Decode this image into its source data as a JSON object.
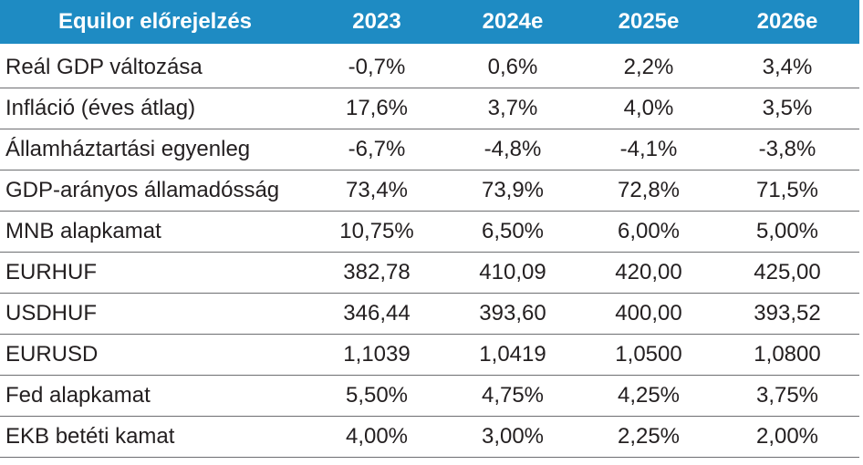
{
  "chart_data": {
    "type": "table",
    "columns": [
      "Equilor előrejelzés",
      "2023",
      "2024e",
      "2025e",
      "2026e"
    ],
    "rows": [
      [
        "Reál GDP változása",
        "-0,7%",
        "0,6%",
        "2,2%",
        "3,4%"
      ],
      [
        "Infláció (éves átlag)",
        "17,6%",
        "3,7%",
        "4,0%",
        "3,5%"
      ],
      [
        "Államháztartási egyenleg",
        "-6,7%",
        "-4,8%",
        "-4,1%",
        "-3,8%"
      ],
      [
        "GDP-arányos államadósság",
        "73,4%",
        "73,9%",
        "72,8%",
        "71,5%"
      ],
      [
        "MNB alapkamat",
        "10,75%",
        "6,50%",
        "6,00%",
        "5,00%"
      ],
      [
        "EURHUF",
        "382,78",
        "410,09",
        "420,00",
        "425,00"
      ],
      [
        "USDHUF",
        "346,44",
        "393,60",
        "400,00",
        "393,52"
      ],
      [
        "EURUSD",
        "1,1039",
        "1,0419",
        "1,0500",
        "1,0800"
      ],
      [
        "Fed alapkamat",
        "5,50%",
        "4,75%",
        "4,25%",
        "3,75%"
      ],
      [
        "EKB betéti kamat",
        "4,00%",
        "3,00%",
        "2,25%",
        "2,00%"
      ]
    ],
    "colors": {
      "header_bg": "#1e8bc3",
      "header_text": "#ffffff",
      "body_text": "#231f20",
      "rule": "#6d6e71"
    }
  }
}
